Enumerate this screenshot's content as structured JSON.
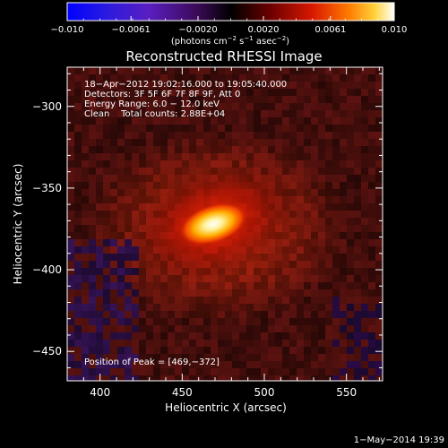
{
  "chart_data": {
    "type": "heatmap",
    "title": "Reconstructed RHESSI Image",
    "xlabel": "Heliocentric X (arcsec)",
    "ylabel": "Heliocentric Y (arcsec)",
    "xlim": [
      380,
      572
    ],
    "ylim": [
      -468,
      -276
    ],
    "x_ticks": [
      "400",
      "450",
      "500",
      "550"
    ],
    "x_tick_values": [
      400,
      450,
      500,
      550
    ],
    "y_ticks": [
      "−300",
      "−350",
      "−400",
      "−450"
    ],
    "y_tick_values": [
      -300,
      -350,
      -400,
      -450
    ],
    "colorbar": {
      "ticks": [
        "−0.010",
        "−0.0061",
        "−0.0020",
        "0.0020",
        "0.0061",
        "0.010"
      ],
      "tick_values": [
        -0.01,
        -0.0061,
        -0.002,
        0.002,
        0.0061,
        0.01
      ],
      "range": [
        -0.01,
        0.01
      ],
      "label_pre": "(photons cm",
      "label_sup1": "−2",
      "label_mid1": " s",
      "label_sup2": "−1",
      "label_mid2": " asec",
      "label_sup3": "−2",
      "label_post": ")"
    },
    "annotations": [
      "18−Apr−2012 19:02:16.000 to 19:05:40.000",
      "Detectors: 3F 5F 6F 7F 8F 9F, Att 0",
      "Energy Range: 6.0 − 12.0 keV",
      "Clean    Total counts: 2.88E+04"
    ],
    "peak_label": "Position of Peak = [469,−372]",
    "peak": [
      469,
      -372
    ],
    "grid": false
  },
  "footer_date": "1−May−2014 19:39"
}
